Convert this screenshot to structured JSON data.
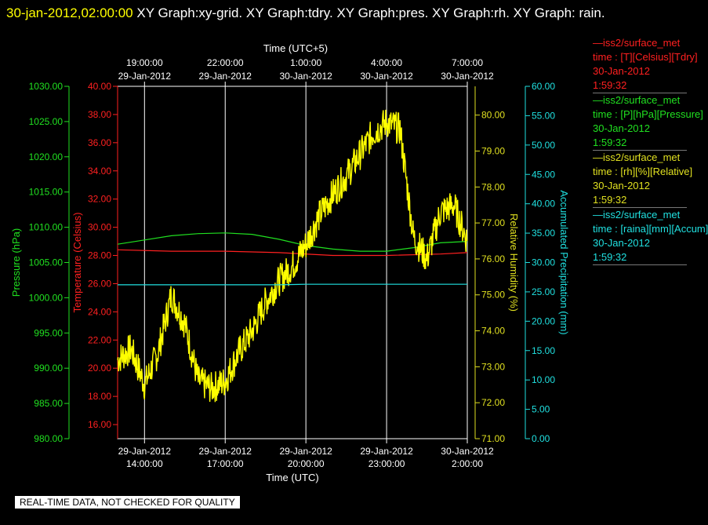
{
  "header": {
    "timestamp": "30-jan-2012,02:00:00",
    "title_rest": "  XY Graph:xy-grid.  XY Graph:tdry.  XY Graph:pres.  XY Graph:rh.  XY Graph: rain."
  },
  "footer_note": "REAL-TIME DATA, NOT CHECKED FOR QUALITY",
  "legend": [
    {
      "line1": "—iss2/surface_met",
      "line2": "time : [T][Celsius][Tdry]",
      "line3": "30-Jan-2012",
      "line4": "1:59:32",
      "color": "#ff2020"
    },
    {
      "line1": "—iss2/surface_met",
      "line2": "time : [P][hPa][Pressure]",
      "line3": "30-Jan-2012",
      "line4": "1:59:32",
      "color": "#20e020"
    },
    {
      "line1": "—iss2/surface_met",
      "line2": "time : [rh][%][Relative]",
      "line3": "30-Jan-2012",
      "line4": "1:59:32",
      "color": "#e0e020"
    },
    {
      "line1": "—iss2/surface_met",
      "line2": "time : [raina][mm][Accum]",
      "line3": "30-Jan-2012",
      "line4": "1:59:32",
      "color": "#20e0e0"
    }
  ],
  "chart_data": {
    "type": "line",
    "x_bottom": {
      "label": "Time (UTC)",
      "range": [
        "2012-01-29T13:00",
        "2012-01-30T02:00"
      ],
      "ticks": [
        {
          "time": "2012-01-29T14:00",
          "date": "29-Jan-2012",
          "clock": "14:00:00"
        },
        {
          "time": "2012-01-29T17:00",
          "date": "29-Jan-2012",
          "clock": "17:00:00"
        },
        {
          "time": "2012-01-29T20:00",
          "date": "29-Jan-2012",
          "clock": "20:00:00"
        },
        {
          "time": "2012-01-29T23:00",
          "date": "29-Jan-2012",
          "clock": "23:00:00"
        },
        {
          "time": "2012-01-30T02:00",
          "date": "30-Jan-2012",
          "clock": "2:00:00"
        }
      ]
    },
    "x_top": {
      "label": "Time (UTC+5)",
      "ticks": [
        {
          "time": "2012-01-29T19:00",
          "clock": "19:00:00",
          "date": "29-Jan-2012"
        },
        {
          "time": "2012-01-29T22:00",
          "clock": "22:00:00",
          "date": "29-Jan-2012"
        },
        {
          "time": "2012-01-30T01:00",
          "clock": "1:00:00",
          "date": "30-Jan-2012"
        },
        {
          "time": "2012-01-30T04:00",
          "clock": "4:00:00",
          "date": "30-Jan-2012"
        },
        {
          "time": "2012-01-30T07:00",
          "clock": "7:00:00",
          "date": "30-Jan-2012"
        }
      ]
    },
    "axes": {
      "pressure": {
        "label": "Pressure (hPa)",
        "color": "#20e020",
        "range": [
          980,
          1030
        ],
        "ticks": [
          "980.00",
          "985.00",
          "990.00",
          "995.00",
          "1000.00",
          "1005.00",
          "1010.00",
          "1015.00",
          "1020.00",
          "1025.00",
          "1030.00"
        ]
      },
      "temperature": {
        "label": "Temperature (Celsius)",
        "color": "#ff2020",
        "range": [
          15,
          40
        ],
        "ticks": [
          "16.00",
          "18.00",
          "20.00",
          "22.00",
          "24.00",
          "26.00",
          "28.00",
          "30.00",
          "32.00",
          "34.00",
          "36.00",
          "38.00",
          "40.00"
        ]
      },
      "rh": {
        "label": "Relative Humidity (%)",
        "color": "#e0e020",
        "range": [
          71,
          80.8
        ],
        "ticks": [
          "71.00",
          "72.00",
          "73.00",
          "74.00",
          "75.00",
          "76.00",
          "77.00",
          "78.00",
          "79.00",
          "80.00"
        ]
      },
      "precip": {
        "label": "Accumulated Precipitation (mm)",
        "color": "#20e0e0",
        "range": [
          0,
          60
        ],
        "ticks": [
          "0.00",
          "5.00",
          "10.00",
          "15.00",
          "20.00",
          "25.00",
          "30.00",
          "35.00",
          "40.00",
          "45.00",
          "50.00",
          "55.00",
          "60.00"
        ]
      }
    },
    "grid": true,
    "series": [
      {
        "name": "iss2/surface_met time : [T][Celsius][Tdry]",
        "axis": "temperature",
        "color": "#ff2020",
        "x": [
          "2012-01-29T13:00",
          "2012-01-29T15:00",
          "2012-01-29T17:00",
          "2012-01-29T19:00",
          "2012-01-29T21:00",
          "2012-01-29T23:00",
          "2012-01-30T01:00",
          "2012-01-30T02:00"
        ],
        "values": [
          28.4,
          28.3,
          28.3,
          28.2,
          28.0,
          28.0,
          28.1,
          28.2
        ]
      },
      {
        "name": "iss2/surface_met time : [P][hPa][Pressure]",
        "axis": "pressure",
        "color": "#20e020",
        "x": [
          "2012-01-29T13:00",
          "2012-01-29T14:00",
          "2012-01-29T15:00",
          "2012-01-29T16:00",
          "2012-01-29T17:00",
          "2012-01-29T18:00",
          "2012-01-29T19:00",
          "2012-01-29T20:00",
          "2012-01-29T21:00",
          "2012-01-29T22:00",
          "2012-01-29T23:00",
          "2012-01-30T00:00",
          "2012-01-30T01:00",
          "2012-01-30T02:00"
        ],
        "values": [
          1007.6,
          1008.2,
          1008.8,
          1009.1,
          1009.2,
          1009.0,
          1008.3,
          1007.4,
          1006.9,
          1006.6,
          1006.6,
          1007.1,
          1007.8,
          1008.0
        ]
      },
      {
        "name": "iss2/surface_met time : [rh][%][Relative]",
        "axis": "rh",
        "color": "#ffff00",
        "x": [
          "2012-01-29T13:00",
          "2012-01-29T13:30",
          "2012-01-29T14:00",
          "2012-01-29T14:30",
          "2012-01-29T15:00",
          "2012-01-29T15:30",
          "2012-01-29T16:00",
          "2012-01-29T16:30",
          "2012-01-29T17:00",
          "2012-01-29T17:30",
          "2012-01-29T18:00",
          "2012-01-29T18:30",
          "2012-01-29T19:00",
          "2012-01-29T19:30",
          "2012-01-29T20:00",
          "2012-01-29T20:30",
          "2012-01-29T21:00",
          "2012-01-29T21:30",
          "2012-01-29T22:00",
          "2012-01-29T22:30",
          "2012-01-29T23:00",
          "2012-01-29T23:30",
          "2012-01-30T00:00",
          "2012-01-30T00:30",
          "2012-01-30T01:00",
          "2012-01-30T01:30",
          "2012-01-30T02:00"
        ],
        "values": [
          73.2,
          73.5,
          72.5,
          73.4,
          75.0,
          74.2,
          72.6,
          72.4,
          72.6,
          73.4,
          74.0,
          74.8,
          75.4,
          75.8,
          76.4,
          77.2,
          77.8,
          78.3,
          78.9,
          79.5,
          79.8,
          79.6,
          76.6,
          76.0,
          77.3,
          77.5,
          76.5
        ]
      },
      {
        "name": "iss2/surface_met time : [raina][mm][Accum]",
        "axis": "precip",
        "color": "#20e0e0",
        "x": [
          "2012-01-29T13:00",
          "2012-01-29T19:00",
          "2012-01-29T20:00",
          "2012-01-30T02:00"
        ],
        "values": [
          26.2,
          26.2,
          26.3,
          26.3
        ]
      }
    ]
  }
}
